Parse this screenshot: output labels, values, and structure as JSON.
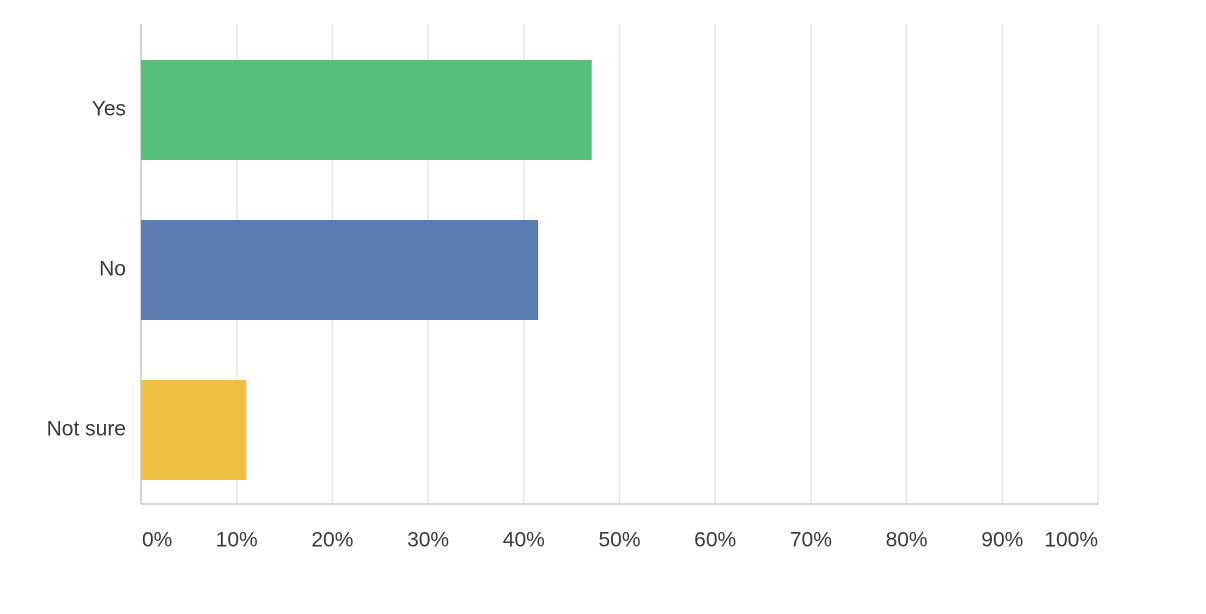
{
  "chart_data": {
    "type": "hbar",
    "categories": [
      "Yes",
      "No",
      "Not sure"
    ],
    "values": [
      47.1,
      41.5,
      11.0
    ],
    "colors": [
      "#57bf7a",
      "#5a7db0",
      "#f0c043"
    ],
    "xlim": [
      0,
      100
    ],
    "xticks": [
      {
        "value": 0,
        "label": "0%"
      },
      {
        "value": 10,
        "label": "10%"
      },
      {
        "value": 20,
        "label": "20%"
      },
      {
        "value": 30,
        "label": "30%"
      },
      {
        "value": 40,
        "label": "40%"
      },
      {
        "value": 50,
        "label": "50%"
      },
      {
        "value": 60,
        "label": "60%"
      },
      {
        "value": 70,
        "label": "70%"
      },
      {
        "value": 80,
        "label": "80%"
      },
      {
        "value": 90,
        "label": "90%"
      },
      {
        "value": 100,
        "label": "100%"
      }
    ],
    "grid": true
  }
}
